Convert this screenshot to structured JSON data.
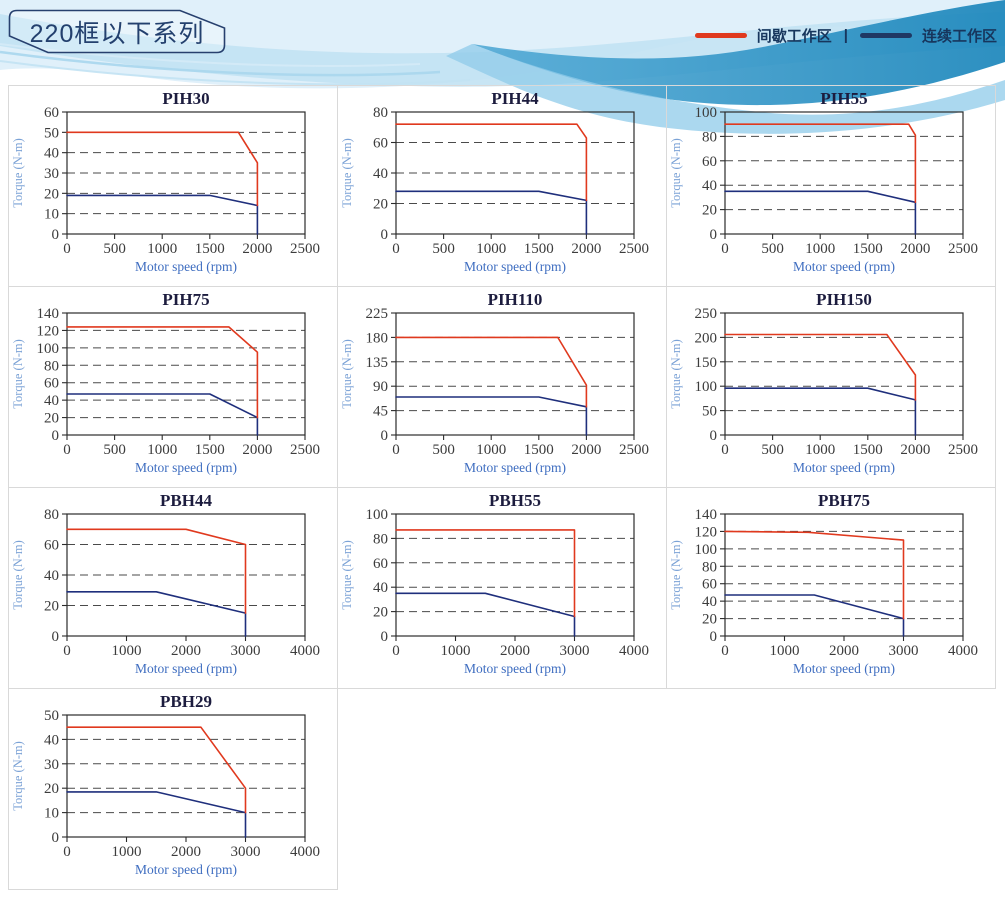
{
  "header": {
    "badge": "220框以下系列"
  },
  "legend": {
    "separator": "|",
    "items": [
      {
        "label": "间歇工作区",
        "color": "#e0391e"
      },
      {
        "label": "连续工作区",
        "color": "#1f3864"
      }
    ]
  },
  "colors": {
    "intermittent_line": "#e0391e",
    "continuous_line": "#1f2f7c",
    "chart_title": "#1c1c3e",
    "tick_label": "#3c3c3c",
    "xlabel": "#3e6dc0",
    "ylabel": "#7ba2d6",
    "panel_border": "#d9d9d9"
  },
  "chart_data": [
    {
      "type": "line",
      "title": "PIH30",
      "xlabel": "Motor speed (rpm)",
      "ylabel": "Torque (N-m)",
      "xlim": [
        0,
        2500
      ],
      "xticks": [
        0,
        500,
        1000,
        1500,
        2000,
        2500
      ],
      "ylim": [
        0,
        60
      ],
      "yticks": [
        0,
        10,
        20,
        30,
        40,
        50,
        60
      ],
      "grid": "dashed-horizontal",
      "legend_position": "none",
      "series": [
        {
          "name": "间歇工作区",
          "color": "#e0391e",
          "points": [
            [
              0,
              50
            ],
            [
              1800,
              50
            ],
            [
              2000,
              35
            ],
            [
              2000,
              14
            ]
          ]
        },
        {
          "name": "连续工作区",
          "color": "#1f2f7c",
          "points": [
            [
              0,
              19
            ],
            [
              1500,
              19
            ],
            [
              2000,
              14
            ],
            [
              2000,
              0
            ]
          ]
        }
      ]
    },
    {
      "type": "line",
      "title": "PIH44",
      "xlabel": "Motor speed (rpm)",
      "ylabel": "Torque (N-m)",
      "xlim": [
        0,
        2500
      ],
      "xticks": [
        0,
        500,
        1000,
        1500,
        2000,
        2500
      ],
      "ylim": [
        0,
        80
      ],
      "yticks": [
        0,
        20,
        40,
        60,
        80
      ],
      "grid": "dashed-horizontal",
      "legend_position": "none",
      "series": [
        {
          "name": "间歇工作区",
          "color": "#e0391e",
          "points": [
            [
              0,
              72
            ],
            [
              1900,
              72
            ],
            [
              2000,
              63
            ],
            [
              2000,
              22
            ]
          ]
        },
        {
          "name": "连续工作区",
          "color": "#1f2f7c",
          "points": [
            [
              0,
              28
            ],
            [
              1500,
              28
            ],
            [
              2000,
              22
            ],
            [
              2000,
              0
            ]
          ]
        }
      ]
    },
    {
      "type": "line",
      "title": "PIH55",
      "xlabel": "Motor speed (rpm)",
      "ylabel": "Torque (N-m)",
      "xlim": [
        0,
        2500
      ],
      "xticks": [
        0,
        500,
        1000,
        1500,
        2000,
        2500
      ],
      "ylim": [
        0,
        100
      ],
      "yticks": [
        0,
        20,
        40,
        60,
        80,
        100
      ],
      "grid": "dashed-horizontal",
      "legend_position": "none",
      "series": [
        {
          "name": "间歇工作区",
          "color": "#e0391e",
          "points": [
            [
              0,
              90
            ],
            [
              1930,
              90
            ],
            [
              2000,
              81
            ],
            [
              2000,
              26
            ]
          ]
        },
        {
          "name": "连续工作区",
          "color": "#1f2f7c",
          "points": [
            [
              0,
              35
            ],
            [
              1500,
              35
            ],
            [
              2000,
              26
            ],
            [
              2000,
              0
            ]
          ]
        }
      ]
    },
    {
      "type": "line",
      "title": "PIH75",
      "xlabel": "Motor speed (rpm)",
      "ylabel": "Torque (N-m)",
      "xlim": [
        0,
        2500
      ],
      "xticks": [
        0,
        500,
        1000,
        1500,
        2000,
        2500
      ],
      "ylim": [
        0,
        140
      ],
      "yticks": [
        0,
        20,
        40,
        60,
        80,
        100,
        120,
        140
      ],
      "grid": "dashed-horizontal",
      "legend_position": "none",
      "series": [
        {
          "name": "间歇工作区",
          "color": "#e0391e",
          "points": [
            [
              0,
              124
            ],
            [
              1700,
              124
            ],
            [
              2000,
              95
            ],
            [
              2000,
              20
            ]
          ]
        },
        {
          "name": "连续工作区",
          "color": "#1f2f7c",
          "points": [
            [
              0,
              47
            ],
            [
              1500,
              47
            ],
            [
              2000,
              20
            ],
            [
              2000,
              0
            ]
          ]
        }
      ]
    },
    {
      "type": "line",
      "title": "PIH110",
      "xlabel": "Motor speed (rpm)",
      "ylabel": "Torque (N-m)",
      "xlim": [
        0,
        2500
      ],
      "xticks": [
        0,
        500,
        1000,
        1500,
        2000,
        2500
      ],
      "ylim": [
        0,
        225
      ],
      "yticks": [
        0,
        45,
        90,
        135,
        180,
        225
      ],
      "grid": "dashed-horizontal",
      "legend_position": "none",
      "series": [
        {
          "name": "间歇工作区",
          "color": "#e0391e",
          "points": [
            [
              0,
              180
            ],
            [
              1700,
              180
            ],
            [
              2000,
              92
            ],
            [
              2000,
              52
            ]
          ]
        },
        {
          "name": "连续工作区",
          "color": "#1f2f7c",
          "points": [
            [
              0,
              70
            ],
            [
              1500,
              70
            ],
            [
              2000,
              52
            ],
            [
              2000,
              0
            ]
          ]
        }
      ]
    },
    {
      "type": "line",
      "title": "PIH150",
      "xlabel": "Motor speed (rpm)",
      "ylabel": "Torque (N-m)",
      "xlim": [
        0,
        2500
      ],
      "xticks": [
        0,
        500,
        1000,
        1500,
        2000,
        2500
      ],
      "ylim": [
        0,
        250
      ],
      "yticks": [
        0,
        50,
        100,
        150,
        200,
        250
      ],
      "grid": "dashed-horizontal",
      "legend_position": "none",
      "series": [
        {
          "name": "间歇工作区",
          "color": "#e0391e",
          "points": [
            [
              0,
              206
            ],
            [
              1700,
              206
            ],
            [
              2000,
              123
            ],
            [
              2000,
              72
            ]
          ]
        },
        {
          "name": "连续工作区",
          "color": "#1f2f7c",
          "points": [
            [
              0,
              96
            ],
            [
              1500,
              96
            ],
            [
              2000,
              72
            ],
            [
              2000,
              0
            ]
          ]
        }
      ]
    },
    {
      "type": "line",
      "title": "PBH44",
      "xlabel": "Motor speed (rpm)",
      "ylabel": "Torque (N-m)",
      "xlim": [
        0,
        4000
      ],
      "xticks": [
        0,
        1000,
        2000,
        3000,
        4000
      ],
      "ylim": [
        0,
        80
      ],
      "yticks": [
        0,
        20,
        40,
        60,
        80
      ],
      "grid": "dashed-horizontal",
      "legend_position": "none",
      "series": [
        {
          "name": "间歇工作区",
          "color": "#e0391e",
          "points": [
            [
              0,
              70
            ],
            [
              2000,
              70
            ],
            [
              3000,
              60
            ],
            [
              3000,
              15
            ]
          ]
        },
        {
          "name": "连续工作区",
          "color": "#1f2f7c",
          "points": [
            [
              0,
              29
            ],
            [
              1500,
              29
            ],
            [
              3000,
              15
            ],
            [
              3000,
              0
            ]
          ]
        }
      ]
    },
    {
      "type": "line",
      "title": "PBH55",
      "xlabel": "Motor speed (rpm)",
      "ylabel": "Torque (N-m)",
      "xlim": [
        0,
        4000
      ],
      "xticks": [
        0,
        1000,
        2000,
        3000,
        4000
      ],
      "ylim": [
        0,
        100
      ],
      "yticks": [
        0,
        20,
        40,
        60,
        80,
        100
      ],
      "grid": "dashed-horizontal",
      "legend_position": "none",
      "series": [
        {
          "name": "间歇工作区",
          "color": "#e0391e",
          "points": [
            [
              0,
              87
            ],
            [
              3000,
              87
            ],
            [
              3000,
              16
            ]
          ]
        },
        {
          "name": "连续工作区",
          "color": "#1f2f7c",
          "points": [
            [
              0,
              35
            ],
            [
              1500,
              35
            ],
            [
              3000,
              16
            ],
            [
              3000,
              0
            ]
          ]
        }
      ]
    },
    {
      "type": "line",
      "title": "PBH75",
      "xlabel": "Motor speed (rpm)",
      "ylabel": "Torque (N-m)",
      "xlim": [
        0,
        4000
      ],
      "xticks": [
        0,
        1000,
        2000,
        3000,
        4000
      ],
      "ylim": [
        0,
        140
      ],
      "yticks": [
        0,
        20,
        40,
        60,
        80,
        100,
        120,
        140
      ],
      "grid": "dashed-horizontal",
      "legend_position": "none",
      "series": [
        {
          "name": "间歇工作区",
          "color": "#e0391e",
          "points": [
            [
              0,
              120
            ],
            [
              1400,
              119
            ],
            [
              3000,
              110
            ],
            [
              3000,
              20
            ]
          ]
        },
        {
          "name": "连续工作区",
          "color": "#1f2f7c",
          "points": [
            [
              0,
              47
            ],
            [
              1500,
              47
            ],
            [
              3000,
              20
            ],
            [
              3000,
              0
            ]
          ]
        }
      ]
    },
    {
      "type": "line",
      "title": "PBH29",
      "xlabel": "Motor speed (rpm)",
      "ylabel": "Torque (N-m)",
      "xlim": [
        0,
        4000
      ],
      "xticks": [
        0,
        1000,
        2000,
        3000,
        4000
      ],
      "ylim": [
        0,
        50
      ],
      "yticks": [
        0,
        10,
        20,
        30,
        40,
        50
      ],
      "grid": "dashed-horizontal",
      "legend_position": "none",
      "series": [
        {
          "name": "间歇工作区",
          "color": "#e0391e",
          "points": [
            [
              0,
              45
            ],
            [
              2250,
              45
            ],
            [
              3000,
              20
            ],
            [
              3000,
              10
            ]
          ]
        },
        {
          "name": "连续工作区",
          "color": "#1f2f7c",
          "points": [
            [
              0,
              18.5
            ],
            [
              1500,
              18.5
            ],
            [
              3000,
              10
            ],
            [
              3000,
              0
            ]
          ]
        }
      ]
    }
  ]
}
